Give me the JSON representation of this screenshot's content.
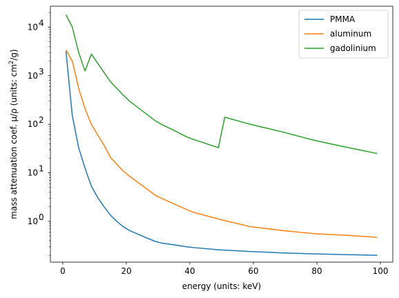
{
  "chart_data": {
    "type": "line",
    "xlabel": "energy (units: keV)",
    "ylabel_main": "mass attenuation coef. μ/ρ (units: cm",
    "ylabel_sup": "2",
    "ylabel_end": "/g)",
    "xlim": [
      -3.9,
      103.9
    ],
    "ylim": [
      0.145,
      27000
    ],
    "yscale": "log",
    "x_ticks": [
      0,
      20,
      40,
      60,
      80,
      100
    ],
    "y_major_ticks": [
      {
        "value": 1,
        "base": "10",
        "exp": "0"
      },
      {
        "value": 10,
        "base": "10",
        "exp": "1"
      },
      {
        "value": 100,
        "base": "10",
        "exp": "2"
      },
      {
        "value": 1000,
        "base": "10",
        "exp": "3"
      },
      {
        "value": 10000,
        "base": "10",
        "exp": "4"
      }
    ],
    "legend_position": "upper right",
    "grid": false,
    "series": [
      {
        "name": "PMMA",
        "color": "#1f77b4",
        "x": [
          1,
          3,
          5,
          7,
          9,
          11,
          13,
          15,
          17,
          19,
          21,
          25,
          29,
          31,
          35,
          39,
          41,
          49,
          59,
          69,
          79,
          89,
          99
        ],
        "y": [
          3200,
          150,
          33,
          12.5,
          5.3,
          3.1,
          2.0,
          1.35,
          1.0,
          0.78,
          0.65,
          0.5,
          0.39,
          0.36,
          0.33,
          0.3,
          0.29,
          0.26,
          0.24,
          0.225,
          0.215,
          0.207,
          0.2
        ]
      },
      {
        "name": "aluminum",
        "color": "#ff7f0e",
        "x": [
          1,
          3,
          5,
          7,
          9,
          11,
          13,
          15,
          17,
          19,
          21,
          25,
          29,
          31,
          35,
          39,
          41,
          49,
          59,
          69,
          79,
          89,
          99
        ],
        "y": [
          3400,
          2000,
          550,
          210,
          100,
          60,
          37,
          21,
          15,
          11,
          8.5,
          5.5,
          3.5,
          3.0,
          2.3,
          1.75,
          1.55,
          1.12,
          0.78,
          0.65,
          0.56,
          0.52,
          0.47
        ]
      },
      {
        "name": "gadolinium",
        "color": "#2ca02c",
        "x": [
          1,
          3,
          5,
          7,
          9,
          11,
          15,
          19,
          21,
          25,
          29,
          31,
          35,
          39,
          41,
          49,
          51,
          59,
          69,
          79,
          89,
          99
        ],
        "y": [
          18000,
          10000,
          3000,
          1250,
          2800,
          1800,
          750,
          400,
          300,
          190,
          120,
          100,
          75,
          55,
          49,
          33,
          140,
          100,
          70,
          47,
          34,
          25
        ]
      }
    ]
  }
}
